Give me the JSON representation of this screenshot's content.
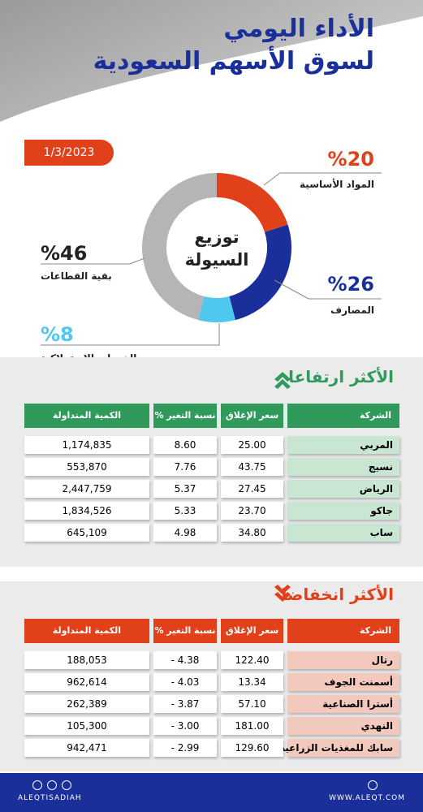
{
  "header": {
    "title_line1": "الأداء اليومي",
    "title_line2": "لسوق الأسهم السعودية",
    "date": "1/3/2023"
  },
  "liquidity": {
    "title_line1": "توزيع",
    "title_line2": "السيولة",
    "segments": [
      {
        "name": "المواد الأساسية",
        "value": 20,
        "label": "%20",
        "color": "#e0401a"
      },
      {
        "name": "المصارف",
        "value": 26,
        "label": "%26",
        "color": "#1b2f9a"
      },
      {
        "name": "الخدمات الاستهلاكية",
        "value": 8,
        "label": "%8",
        "color": "#4fc8f0"
      },
      {
        "name": "بقية القطاعات",
        "value": 46,
        "label": "%46",
        "color": "#b5b5b5"
      }
    ]
  },
  "gainers": {
    "title": "الأكثر ارتفاعا",
    "columns": [
      "الشركة",
      "سعر الإغلاق",
      "نسبة التغير %",
      "الكمية المتداولة"
    ],
    "rows": [
      [
        "المربي",
        "25.00",
        "8.60",
        "1,174,835"
      ],
      [
        "نسيج",
        "43.75",
        "7.76",
        "553,870"
      ],
      [
        "الرياض",
        "27.45",
        "5.37",
        "2,447,759"
      ],
      [
        "جاكو",
        "23.70",
        "5.33",
        "1,834,526"
      ],
      [
        "ساب",
        "34.80",
        "4.98",
        "645,109"
      ]
    ]
  },
  "losers": {
    "title": "الأكثر انخفاضا",
    "columns": [
      "الشركة",
      "سعر الإغلاق",
      "نسبة التغير %",
      "الكمية المتداولة"
    ],
    "rows": [
      [
        "رتال",
        "122.40",
        "- 4.38",
        "188,053"
      ],
      [
        "أسمنت الجوف",
        "13.34",
        "- 4.03",
        "962,614"
      ],
      [
        "أسترا الصناعية",
        "57.10",
        "- 3.87",
        "262,389"
      ],
      [
        "النهدي",
        "181.00",
        "- 3.00",
        "105,300"
      ],
      [
        "سابك للمغذيات الزراعية",
        "129.60",
        "- 2.99",
        "942,471"
      ]
    ]
  },
  "footer": {
    "handle": "ALEQTISADIAH",
    "website": "WWW.ALEQT.COM"
  }
}
